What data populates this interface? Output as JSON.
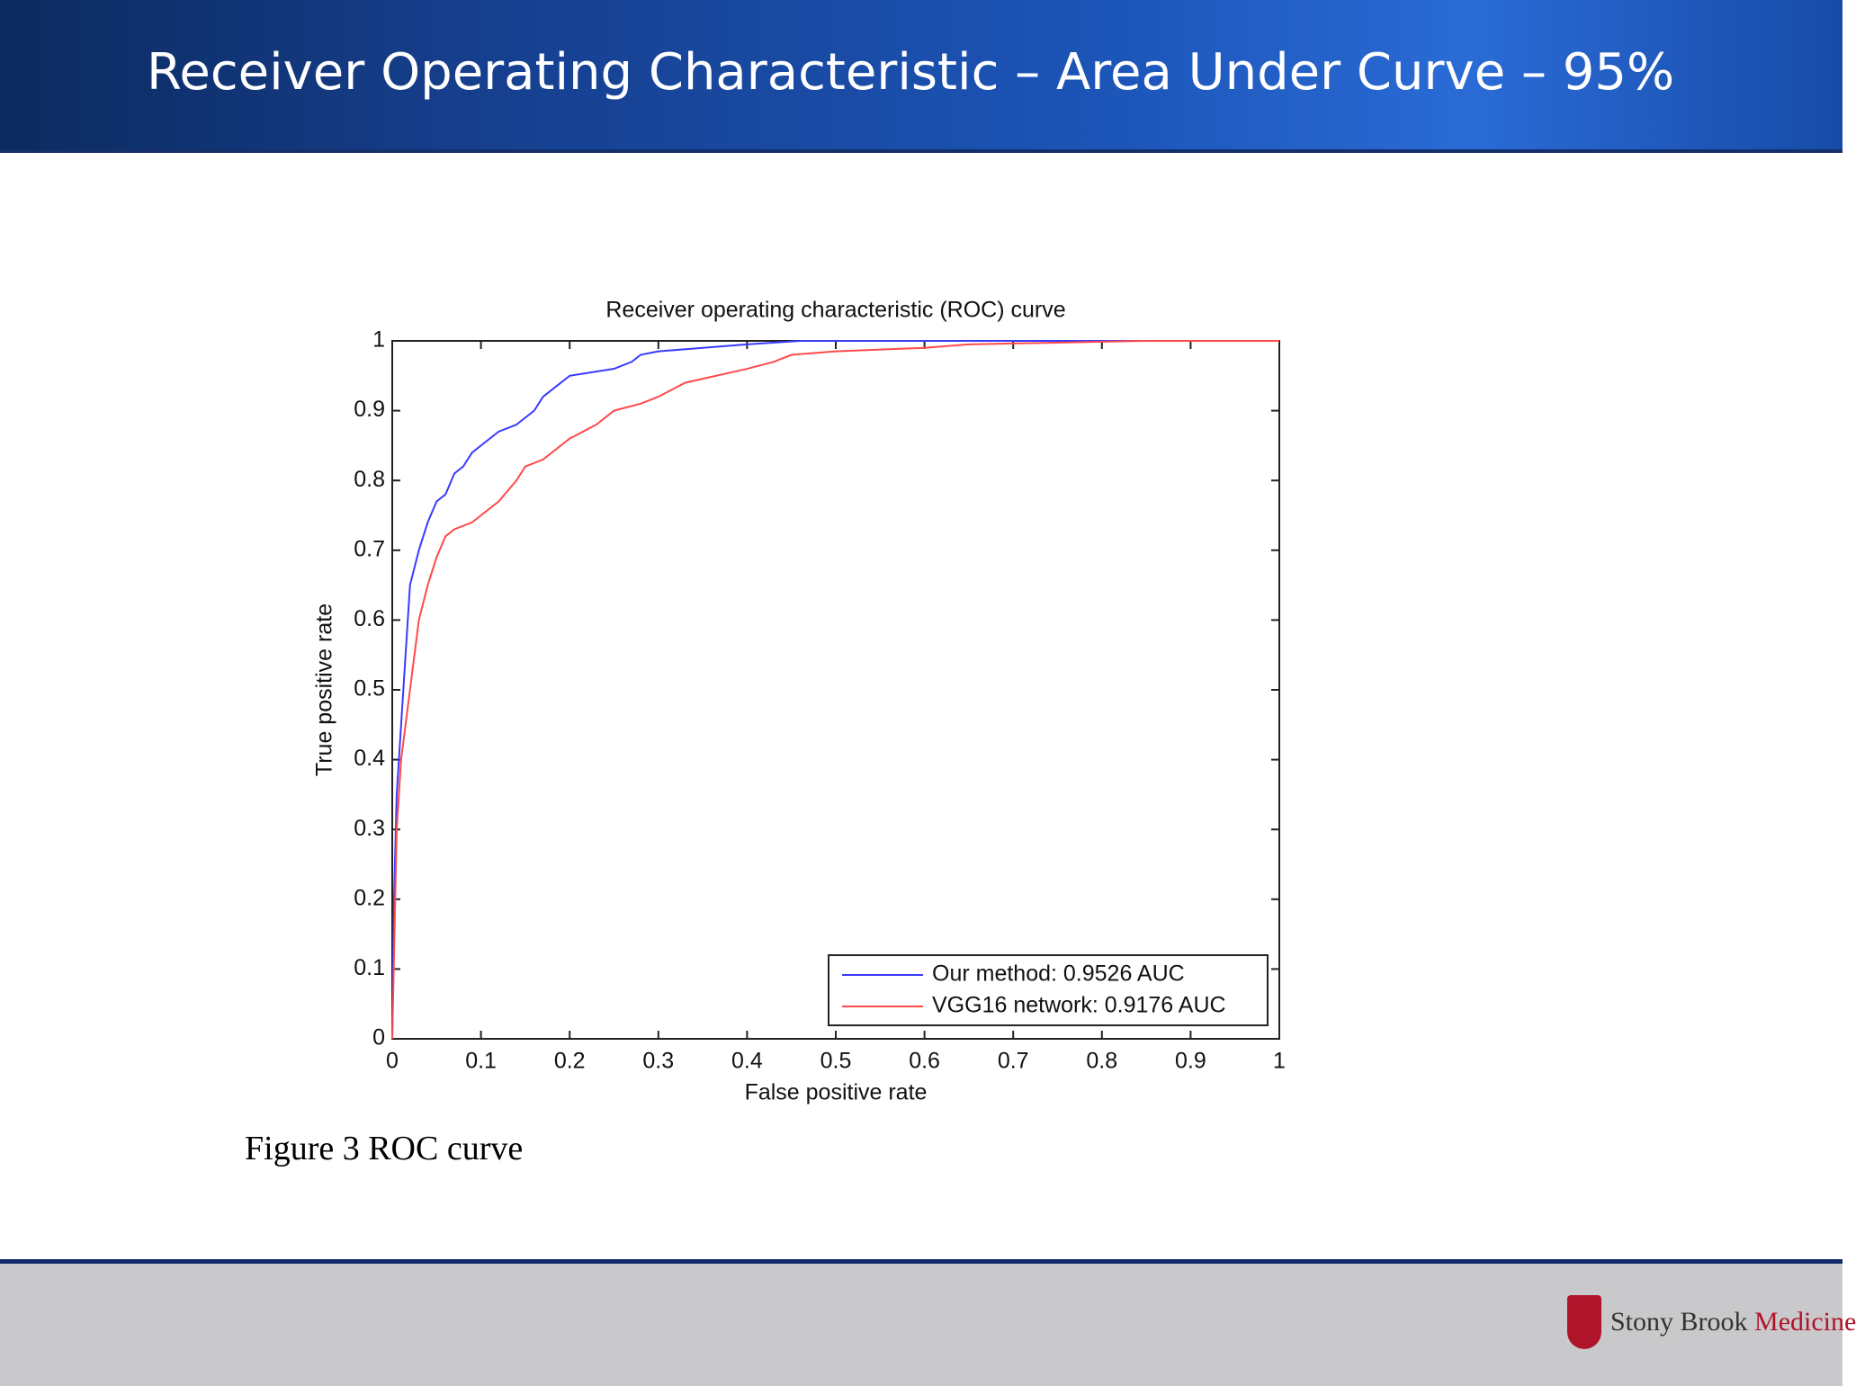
{
  "slide": {
    "title": "Receiver Operating Characteristic – Area Under Curve – 95%",
    "caption": "Figure 3 ROC curve",
    "logo_text": "Stony Brook",
    "logo_accent": "Medicine"
  },
  "chart_data": {
    "type": "line",
    "title": "Receiver operating characteristic (ROC) curve",
    "x_label": "False positive rate",
    "y_label": "True positive rate",
    "xlim": [
      0,
      1
    ],
    "ylim": [
      0,
      1
    ],
    "xticks": [
      0,
      0.1,
      0.2,
      0.3,
      0.4,
      0.5,
      0.6,
      0.7,
      0.8,
      0.9,
      1
    ],
    "yticks": [
      0,
      0.1,
      0.2,
      0.3,
      0.4,
      0.5,
      0.6,
      0.7,
      0.8,
      0.9,
      1
    ],
    "grid": false,
    "legend": "lower right",
    "series": [
      {
        "name": "Our method: 0.9526 AUC",
        "color": "#3a3aff",
        "x": [
          0,
          0.002,
          0.005,
          0.01,
          0.015,
          0.02,
          0.03,
          0.04,
          0.05,
          0.06,
          0.07,
          0.08,
          0.09,
          0.1,
          0.12,
          0.14,
          0.16,
          0.17,
          0.18,
          0.2,
          0.25,
          0.27,
          0.28,
          0.3,
          0.35,
          0.4,
          0.46,
          0.5,
          1
        ],
        "values": [
          0,
          0.2,
          0.35,
          0.45,
          0.55,
          0.65,
          0.7,
          0.74,
          0.77,
          0.78,
          0.81,
          0.82,
          0.84,
          0.85,
          0.87,
          0.88,
          0.9,
          0.92,
          0.93,
          0.95,
          0.96,
          0.97,
          0.98,
          0.985,
          0.99,
          0.995,
          1,
          1,
          1
        ]
      },
      {
        "name": "VGG16 network: 0.9176 AUC",
        "color": "#ff4a4a",
        "x": [
          0,
          0.005,
          0.01,
          0.02,
          0.03,
          0.04,
          0.05,
          0.06,
          0.07,
          0.09,
          0.1,
          0.12,
          0.14,
          0.15,
          0.17,
          0.2,
          0.23,
          0.25,
          0.28,
          0.3,
          0.33,
          0.4,
          0.43,
          0.45,
          0.5,
          0.6,
          0.65,
          0.85,
          1
        ],
        "values": [
          0,
          0.3,
          0.4,
          0.5,
          0.6,
          0.65,
          0.69,
          0.72,
          0.73,
          0.74,
          0.75,
          0.77,
          0.8,
          0.82,
          0.83,
          0.86,
          0.88,
          0.9,
          0.91,
          0.92,
          0.94,
          0.96,
          0.97,
          0.98,
          0.985,
          0.99,
          0.995,
          1,
          1
        ]
      }
    ]
  }
}
